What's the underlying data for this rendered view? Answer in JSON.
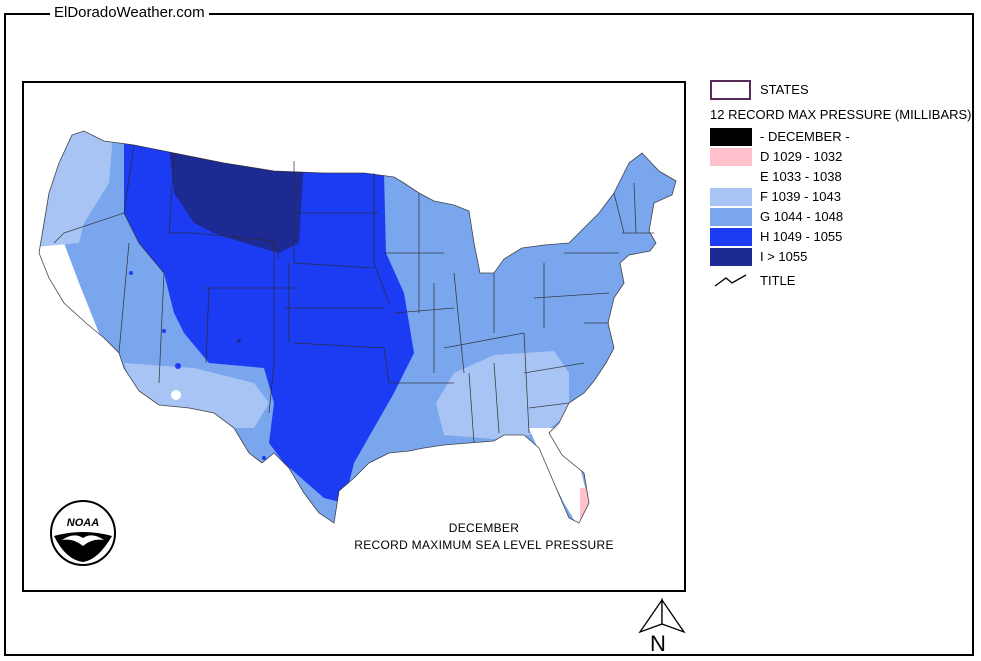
{
  "site": {
    "label": "ElDoradoWeather.com"
  },
  "map": {
    "title_line1": "DECEMBER",
    "title_line2": "RECORD  MAXIMUM  SEA  LEVEL  PRESSURE",
    "logo_text": "NOAA",
    "north_label": "N"
  },
  "legend": {
    "states_label": "STATES",
    "heading": "12 RECORD MAX PRESSURE (MILLIBARS)",
    "classes": [
      {
        "label": "- DECEMBER -",
        "color": "#000000"
      },
      {
        "label": "D 1029 - 1032",
        "color": "#ffc0cb"
      },
      {
        "label": "E 1033 - 1038",
        "color": "#ffffff"
      },
      {
        "label": "F 1039 - 1043",
        "color": "#a8c4f4"
      },
      {
        "label": "G 1044 - 1048",
        "color": "#7aa6ee"
      },
      {
        "label": "H 1049 - 1055",
        "color": "#1c3cf4"
      },
      {
        "label": "I > 1055",
        "color": "#1e2a94"
      }
    ],
    "title_label": "TITLE"
  }
}
